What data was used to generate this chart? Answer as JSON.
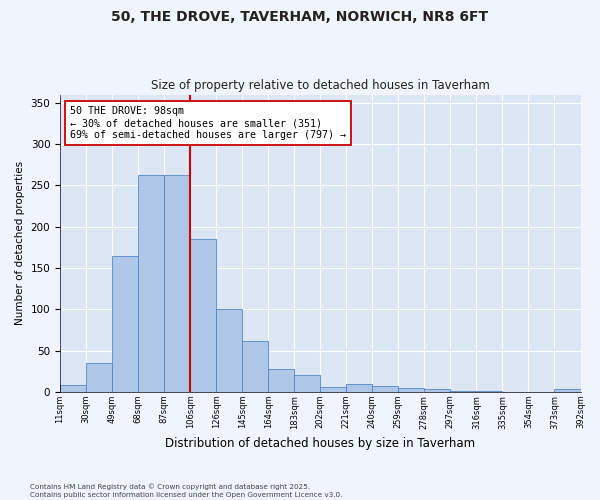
{
  "title_line1": "50, THE DROVE, TAVERHAM, NORWICH, NR8 6FT",
  "title_line2": "Size of property relative to detached houses in Taverham",
  "xlabel": "Distribution of detached houses by size in Taverham",
  "ylabel": "Number of detached properties",
  "categories": [
    "11sqm",
    "30sqm",
    "49sqm",
    "68sqm",
    "87sqm",
    "106sqm",
    "126sqm",
    "145sqm",
    "164sqm",
    "183sqm",
    "202sqm",
    "221sqm",
    "240sqm",
    "259sqm",
    "278sqm",
    "297sqm",
    "316sqm",
    "335sqm",
    "354sqm",
    "373sqm",
    "392sqm"
  ],
  "values": [
    8,
    35,
    165,
    263,
    263,
    185,
    100,
    62,
    28,
    20,
    6,
    9,
    7,
    5,
    4,
    1,
    1,
    0,
    0,
    3
  ],
  "bar_color": "#aec6e8",
  "bar_edge_color": "#5585c5",
  "vline_color": "#cc0000",
  "annotation_text": "50 THE DROVE: 98sqm\n← 30% of detached houses are smaller (351)\n69% of semi-detached houses are larger (797) →",
  "annotation_box_color": "#ffffff",
  "annotation_box_edge": "#cc0000",
  "ylim": [
    0,
    360
  ],
  "yticks": [
    0,
    50,
    100,
    150,
    200,
    250,
    300,
    350
  ],
  "background_color": "#e8eef8",
  "plot_bg_color": "#dce6f5",
  "grid_color": "#ffffff",
  "footer_text": "Contains HM Land Registry data © Crown copyright and database right 2025.\nContains public sector information licensed under the Open Government Licence v3.0.",
  "fig_bg_color": "#f0f4fc"
}
